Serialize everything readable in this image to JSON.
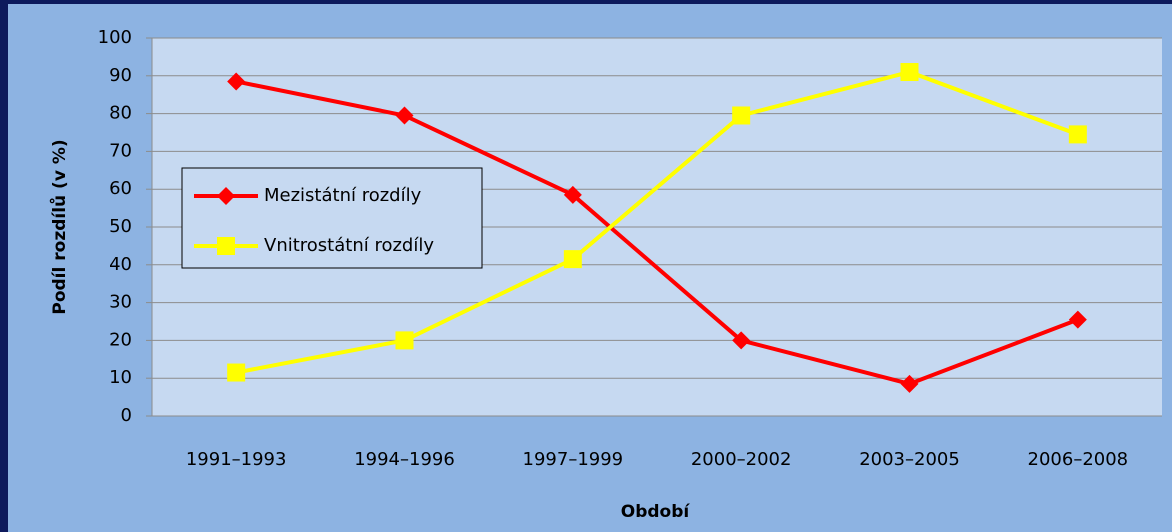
{
  "chart_data": {
    "type": "line",
    "x_label": "Období",
    "y_label": "Podíl rozdílů (v %)",
    "categories": [
      "1991–1993",
      "1994–1996",
      "1997–1999",
      "2000–2002",
      "2003–2005",
      "2006–2008"
    ],
    "series": [
      {
        "name": "Mezistátní rozdíly",
        "color": "#ff0000",
        "marker": "diamond",
        "values": [
          88.5,
          79.5,
          58.5,
          20,
          8.5,
          25.5
        ]
      },
      {
        "name": "Vnitrostátní rozdíly",
        "color": "#ffff00",
        "marker": "square",
        "values": [
          11.5,
          20,
          41.5,
          79.5,
          91,
          74.5
        ]
      }
    ],
    "ylim": [
      0,
      100
    ],
    "yticks": [
      0,
      10,
      20,
      30,
      40,
      50,
      60,
      70,
      80,
      90,
      100
    ],
    "grid": true
  }
}
